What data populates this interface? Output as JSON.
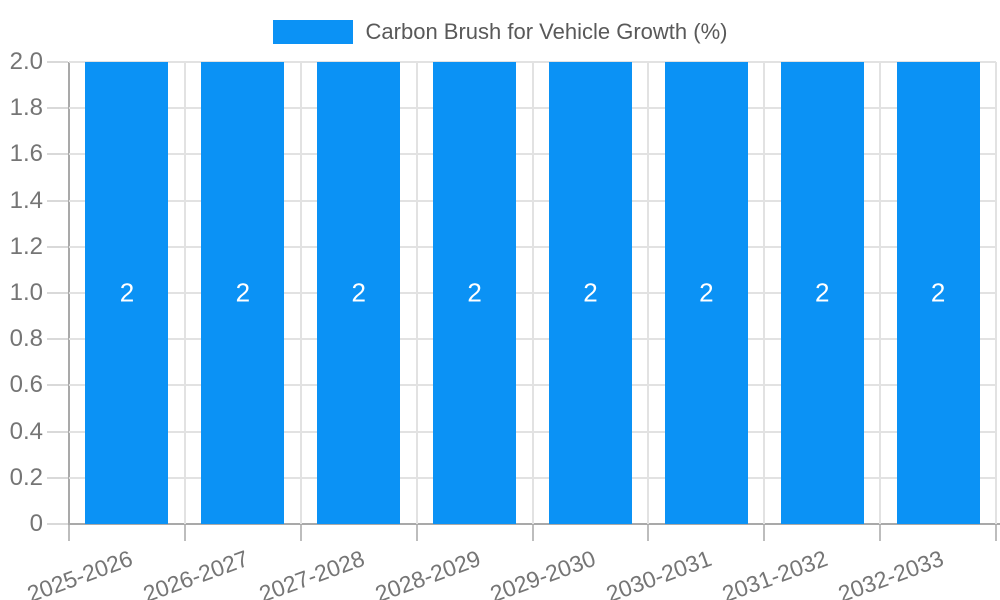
{
  "chart_data": {
    "type": "bar",
    "title": "Carbon Brush for Vehicle Growth (%)",
    "categories": [
      "2025-2026",
      "2026-2027",
      "2027-2028",
      "2028-2029",
      "2029-2030",
      "2030-2031",
      "2031-2032",
      "2032-2033"
    ],
    "series": [
      {
        "name": "Carbon Brush for Vehicle Growth (%)",
        "values": [
          2,
          2,
          2,
          2,
          2,
          2,
          2,
          2
        ]
      }
    ],
    "bar_value_labels": [
      "2",
      "2",
      "2",
      "2",
      "2",
      "2",
      "2",
      "2"
    ],
    "xlabel": "",
    "ylabel": "",
    "ylim": [
      0,
      2
    ],
    "yticks": [
      "0",
      "0.2",
      "0.4",
      "0.6",
      "0.8",
      "1.0",
      "1.2",
      "1.4",
      "1.6",
      "1.8",
      "2.0"
    ],
    "grid": true,
    "legend_position": "top-center",
    "colors": {
      "bar": "#0b92f5",
      "grid": "#e2e2e2",
      "axis": "#a9a9a9",
      "tick_text": "#757575",
      "title_text": "#595959",
      "value_label": "#ffffff"
    }
  },
  "legend": {
    "label": "Carbon Brush for Vehicle Growth (%)",
    "swatch_color": "#0b92f5"
  }
}
